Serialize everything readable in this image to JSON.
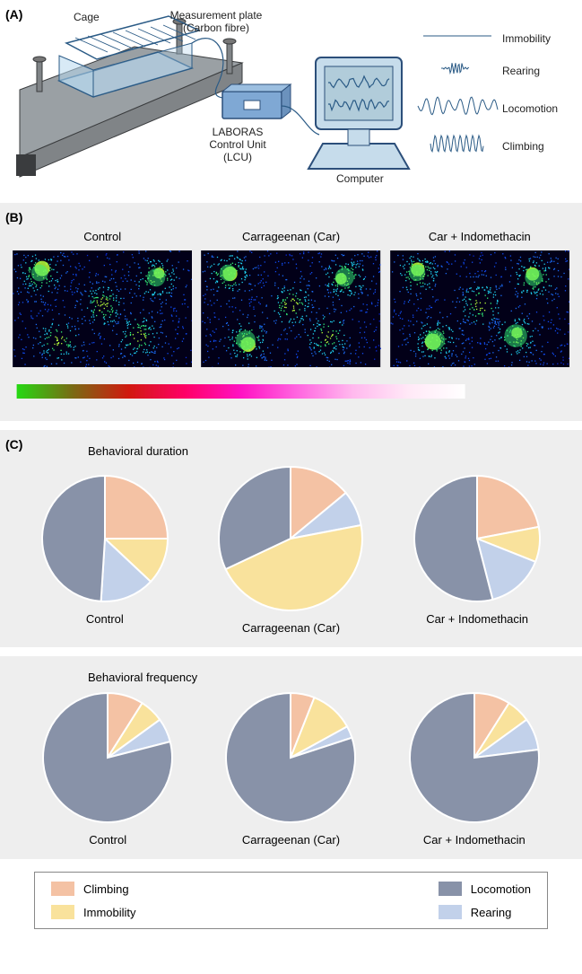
{
  "panelA": {
    "label": "(A)",
    "cage_label": "Cage",
    "plate_label_l1": "Measurement plate",
    "plate_label_l2": "(Carbon fibre)",
    "lcu_label_l1": "LABORAS",
    "lcu_label_l2": "Control Unit",
    "lcu_label_l3": "(LCU)",
    "computer_label": "Computer",
    "waves": [
      {
        "label": "Immobility"
      },
      {
        "label": "Rearing"
      },
      {
        "label": "Locomotion"
      },
      {
        "label": "Climbing"
      }
    ],
    "colors": {
      "platform_fill": "#808487",
      "platform_edge": "#3a3c3e",
      "cage_fill": "#b8d8ef",
      "cage_stroke": "#2b5b86",
      "lcu_fill": "#7fa8d4",
      "lcu_stroke": "#2c4f7a",
      "monitor_fill": "#c6dceb",
      "monitor_screen": "#b1ccda",
      "line": "#2b5b86",
      "wave": "#2b5b86"
    }
  },
  "panelB": {
    "label": "(B)",
    "titles": [
      "Control",
      "Carrageenan (Car)",
      "Car + Indomethacin"
    ],
    "heatmap_bg": "#020018",
    "dot_colors": [
      "#0b2bdc",
      "#1149f0",
      "#1b6af7",
      "#1fd0f0",
      "#34f27a",
      "#b7fd3a"
    ],
    "gradient_stops": [
      "#25d913",
      "#7a6a14",
      "#d1190f",
      "#ff0066",
      "#ff12c3",
      "#ff65e0",
      "#ffb9ee",
      "#ffe9f7",
      "#ffffff"
    ]
  },
  "panelC": {
    "label": "(C)",
    "legend": {
      "climbing": {
        "label": "Climbing",
        "color": "#f4c2a4"
      },
      "immobility": {
        "label": "Immobility",
        "color": "#f9e29c"
      },
      "locomotion": {
        "label": "Locomotion",
        "color": "#8892a8"
      },
      "rearing": {
        "label": "Rearing",
        "color": "#c2d1ea"
      }
    },
    "duration": {
      "title": "Behavioral duration",
      "pies": [
        {
          "label": "Control",
          "r": 70,
          "slices": [
            {
              "name": "climbing",
              "value": 25,
              "color": "#f4c2a4"
            },
            {
              "name": "immobility",
              "value": 12,
              "color": "#f9e29c"
            },
            {
              "name": "rearing",
              "value": 14,
              "color": "#c2d1ea"
            },
            {
              "name": "locomotion",
              "value": 49,
              "color": "#8892a8"
            }
          ]
        },
        {
          "label": "Carrageenan (Car)",
          "r": 80,
          "slices": [
            {
              "name": "climbing",
              "value": 14,
              "color": "#f4c2a4"
            },
            {
              "name": "rearing",
              "value": 8,
              "color": "#c2d1ea"
            },
            {
              "name": "immobility",
              "value": 46,
              "color": "#f9e29c"
            },
            {
              "name": "locomotion",
              "value": 32,
              "color": "#8892a8"
            }
          ]
        },
        {
          "label": "Car + Indomethacin",
          "r": 70,
          "slices": [
            {
              "name": "climbing",
              "value": 22,
              "color": "#f4c2a4"
            },
            {
              "name": "immobility",
              "value": 9,
              "color": "#f9e29c"
            },
            {
              "name": "rearing",
              "value": 15,
              "color": "#c2d1ea"
            },
            {
              "name": "locomotion",
              "value": 54,
              "color": "#8892a8"
            }
          ]
        }
      ]
    },
    "frequency": {
      "title": "Behavioral frequency",
      "pies": [
        {
          "label": "Control",
          "r": 72,
          "slices": [
            {
              "name": "climbing",
              "value": 9,
              "color": "#f4c2a4"
            },
            {
              "name": "immobility",
              "value": 6,
              "color": "#f9e29c"
            },
            {
              "name": "rearing",
              "value": 6,
              "color": "#c2d1ea"
            },
            {
              "name": "locomotion",
              "value": 79,
              "color": "#8892a8"
            }
          ]
        },
        {
          "label": "Carrageenan (Car)",
          "r": 72,
          "slices": [
            {
              "name": "climbing",
              "value": 6,
              "color": "#f4c2a4"
            },
            {
              "name": "immobility",
              "value": 11,
              "color": "#f9e29c"
            },
            {
              "name": "rearing",
              "value": 3,
              "color": "#c2d1ea"
            },
            {
              "name": "locomotion",
              "value": 80,
              "color": "#8892a8"
            }
          ]
        },
        {
          "label": "Car + Indomethacin",
          "r": 72,
          "slices": [
            {
              "name": "climbing",
              "value": 9,
              "color": "#f4c2a4"
            },
            {
              "name": "immobility",
              "value": 6,
              "color": "#f9e29c"
            },
            {
              "name": "rearing",
              "value": 8,
              "color": "#c2d1ea"
            },
            {
              "name": "locomotion",
              "value": 77,
              "color": "#8892a8"
            }
          ]
        }
      ]
    }
  }
}
